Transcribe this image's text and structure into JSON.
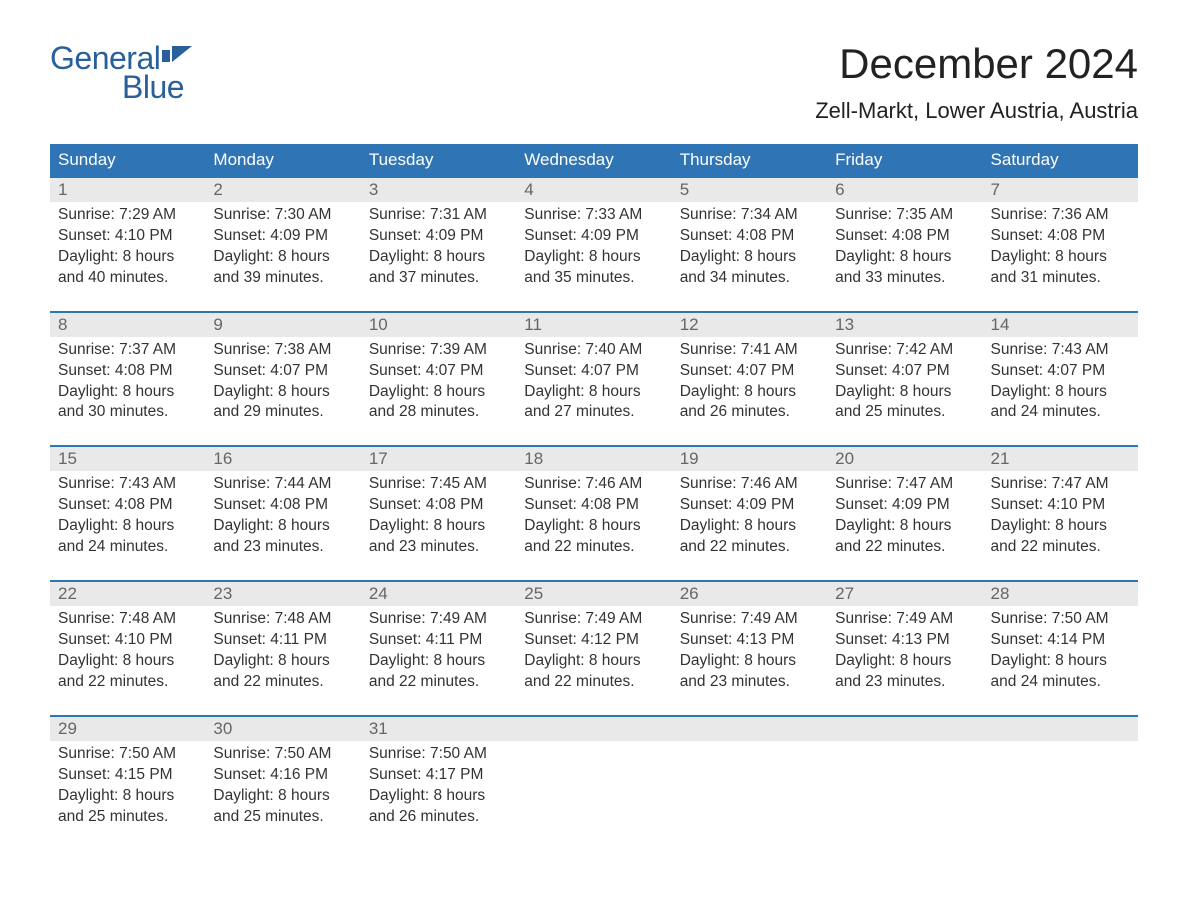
{
  "logo": {
    "text_general": "General",
    "text_blue": "Blue",
    "flag_color": "#2a6099"
  },
  "title": "December 2024",
  "location": "Zell-Markt, Lower Austria, Austria",
  "colors": {
    "header_bg": "#2f75b5",
    "header_text": "#ffffff",
    "daynum_bg": "#e9e9e9",
    "daynum_text": "#666666",
    "border": "#2f75b5",
    "body_text": "#333333",
    "logo_color": "#2a6099",
    "page_bg": "#ffffff"
  },
  "fonts": {
    "title_size_pt": 32,
    "location_size_pt": 17,
    "header_size_pt": 13,
    "daynum_size_pt": 13,
    "body_size_pt": 12
  },
  "day_headers": [
    "Sunday",
    "Monday",
    "Tuesday",
    "Wednesday",
    "Thursday",
    "Friday",
    "Saturday"
  ],
  "weeks": [
    [
      {
        "n": "1",
        "sunrise": "7:29 AM",
        "sunset": "4:10 PM",
        "dl1": "Daylight: 8 hours",
        "dl2": "and 40 minutes."
      },
      {
        "n": "2",
        "sunrise": "7:30 AM",
        "sunset": "4:09 PM",
        "dl1": "Daylight: 8 hours",
        "dl2": "and 39 minutes."
      },
      {
        "n": "3",
        "sunrise": "7:31 AM",
        "sunset": "4:09 PM",
        "dl1": "Daylight: 8 hours",
        "dl2": "and 37 minutes."
      },
      {
        "n": "4",
        "sunrise": "7:33 AM",
        "sunset": "4:09 PM",
        "dl1": "Daylight: 8 hours",
        "dl2": "and 35 minutes."
      },
      {
        "n": "5",
        "sunrise": "7:34 AM",
        "sunset": "4:08 PM",
        "dl1": "Daylight: 8 hours",
        "dl2": "and 34 minutes."
      },
      {
        "n": "6",
        "sunrise": "7:35 AM",
        "sunset": "4:08 PM",
        "dl1": "Daylight: 8 hours",
        "dl2": "and 33 minutes."
      },
      {
        "n": "7",
        "sunrise": "7:36 AM",
        "sunset": "4:08 PM",
        "dl1": "Daylight: 8 hours",
        "dl2": "and 31 minutes."
      }
    ],
    [
      {
        "n": "8",
        "sunrise": "7:37 AM",
        "sunset": "4:08 PM",
        "dl1": "Daylight: 8 hours",
        "dl2": "and 30 minutes."
      },
      {
        "n": "9",
        "sunrise": "7:38 AM",
        "sunset": "4:07 PM",
        "dl1": "Daylight: 8 hours",
        "dl2": "and 29 minutes."
      },
      {
        "n": "10",
        "sunrise": "7:39 AM",
        "sunset": "4:07 PM",
        "dl1": "Daylight: 8 hours",
        "dl2": "and 28 minutes."
      },
      {
        "n": "11",
        "sunrise": "7:40 AM",
        "sunset": "4:07 PM",
        "dl1": "Daylight: 8 hours",
        "dl2": "and 27 minutes."
      },
      {
        "n": "12",
        "sunrise": "7:41 AM",
        "sunset": "4:07 PM",
        "dl1": "Daylight: 8 hours",
        "dl2": "and 26 minutes."
      },
      {
        "n": "13",
        "sunrise": "7:42 AM",
        "sunset": "4:07 PM",
        "dl1": "Daylight: 8 hours",
        "dl2": "and 25 minutes."
      },
      {
        "n": "14",
        "sunrise": "7:43 AM",
        "sunset": "4:07 PM",
        "dl1": "Daylight: 8 hours",
        "dl2": "and 24 minutes."
      }
    ],
    [
      {
        "n": "15",
        "sunrise": "7:43 AM",
        "sunset": "4:08 PM",
        "dl1": "Daylight: 8 hours",
        "dl2": "and 24 minutes."
      },
      {
        "n": "16",
        "sunrise": "7:44 AM",
        "sunset": "4:08 PM",
        "dl1": "Daylight: 8 hours",
        "dl2": "and 23 minutes."
      },
      {
        "n": "17",
        "sunrise": "7:45 AM",
        "sunset": "4:08 PM",
        "dl1": "Daylight: 8 hours",
        "dl2": "and 23 minutes."
      },
      {
        "n": "18",
        "sunrise": "7:46 AM",
        "sunset": "4:08 PM",
        "dl1": "Daylight: 8 hours",
        "dl2": "and 22 minutes."
      },
      {
        "n": "19",
        "sunrise": "7:46 AM",
        "sunset": "4:09 PM",
        "dl1": "Daylight: 8 hours",
        "dl2": "and 22 minutes."
      },
      {
        "n": "20",
        "sunrise": "7:47 AM",
        "sunset": "4:09 PM",
        "dl1": "Daylight: 8 hours",
        "dl2": "and 22 minutes."
      },
      {
        "n": "21",
        "sunrise": "7:47 AM",
        "sunset": "4:10 PM",
        "dl1": "Daylight: 8 hours",
        "dl2": "and 22 minutes."
      }
    ],
    [
      {
        "n": "22",
        "sunrise": "7:48 AM",
        "sunset": "4:10 PM",
        "dl1": "Daylight: 8 hours",
        "dl2": "and 22 minutes."
      },
      {
        "n": "23",
        "sunrise": "7:48 AM",
        "sunset": "4:11 PM",
        "dl1": "Daylight: 8 hours",
        "dl2": "and 22 minutes."
      },
      {
        "n": "24",
        "sunrise": "7:49 AM",
        "sunset": "4:11 PM",
        "dl1": "Daylight: 8 hours",
        "dl2": "and 22 minutes."
      },
      {
        "n": "25",
        "sunrise": "7:49 AM",
        "sunset": "4:12 PM",
        "dl1": "Daylight: 8 hours",
        "dl2": "and 22 minutes."
      },
      {
        "n": "26",
        "sunrise": "7:49 AM",
        "sunset": "4:13 PM",
        "dl1": "Daylight: 8 hours",
        "dl2": "and 23 minutes."
      },
      {
        "n": "27",
        "sunrise": "7:49 AM",
        "sunset": "4:13 PM",
        "dl1": "Daylight: 8 hours",
        "dl2": "and 23 minutes."
      },
      {
        "n": "28",
        "sunrise": "7:50 AM",
        "sunset": "4:14 PM",
        "dl1": "Daylight: 8 hours",
        "dl2": "and 24 minutes."
      }
    ],
    [
      {
        "n": "29",
        "sunrise": "7:50 AM",
        "sunset": "4:15 PM",
        "dl1": "Daylight: 8 hours",
        "dl2": "and 25 minutes."
      },
      {
        "n": "30",
        "sunrise": "7:50 AM",
        "sunset": "4:16 PM",
        "dl1": "Daylight: 8 hours",
        "dl2": "and 25 minutes."
      },
      {
        "n": "31",
        "sunrise": "7:50 AM",
        "sunset": "4:17 PM",
        "dl1": "Daylight: 8 hours",
        "dl2": "and 26 minutes."
      },
      null,
      null,
      null,
      null
    ]
  ],
  "labels": {
    "sunrise_prefix": "Sunrise: ",
    "sunset_prefix": "Sunset: "
  }
}
